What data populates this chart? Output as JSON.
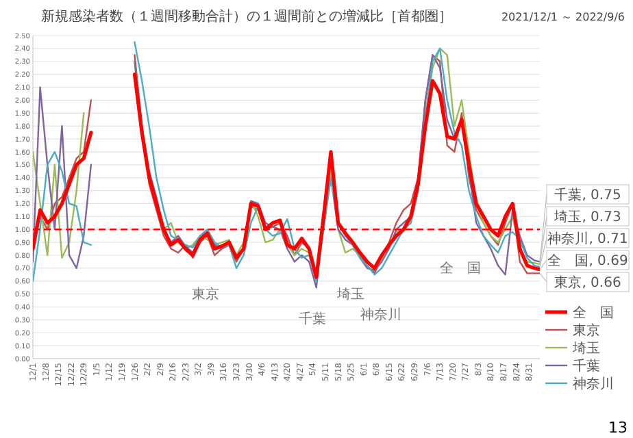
{
  "chart_data": {
    "type": "line",
    "title": "新規感染者数（１週間移動合計）の１週間前との増減比［首都圏］",
    "subtitle": "2021/12/1 ～ 2022/9/6",
    "x": [
      "2021-12-01",
      "2021-12-05",
      "2021-12-09",
      "2021-12-13",
      "2021-12-17",
      "2021-12-21",
      "2021-12-25",
      "2021-12-29",
      "2022-01-02",
      "2022-01-06",
      "2022-01-10",
      "2022-01-14",
      "2022-01-18",
      "2022-01-22",
      "2022-01-26",
      "2022-01-30",
      "2022-02-03",
      "2022-02-07",
      "2022-02-11",
      "2022-02-15",
      "2022-02-19",
      "2022-02-23",
      "2022-02-27",
      "2022-03-03",
      "2022-03-07",
      "2022-03-11",
      "2022-03-15",
      "2022-03-19",
      "2022-03-23",
      "2022-03-27",
      "2022-03-31",
      "2022-04-04",
      "2022-04-08",
      "2022-04-12",
      "2022-04-16",
      "2022-04-20",
      "2022-04-24",
      "2022-04-28",
      "2022-05-02",
      "2022-05-06",
      "2022-05-10",
      "2022-05-14",
      "2022-05-18",
      "2022-05-22",
      "2022-05-26",
      "2022-05-30",
      "2022-06-03",
      "2022-06-07",
      "2022-06-11",
      "2022-06-15",
      "2022-06-19",
      "2022-06-23",
      "2022-06-27",
      "2022-07-01",
      "2022-07-05",
      "2022-07-09",
      "2022-07-13",
      "2022-07-17",
      "2022-07-21",
      "2022-07-25",
      "2022-07-29",
      "2022-08-02",
      "2022-08-06",
      "2022-08-10",
      "2022-08-14",
      "2022-08-18",
      "2022-08-22",
      "2022-08-26",
      "2022-08-30",
      "2022-09-03",
      "2022-09-06"
    ],
    "series": [
      {
        "name": "全　国",
        "color": "#ff0000",
        "values": [
          0.85,
          1.15,
          1.05,
          1.1,
          1.2,
          1.35,
          1.5,
          1.55,
          1.75,
          null,
          null,
          null,
          null,
          null,
          2.2,
          1.75,
          1.4,
          1.2,
          1.0,
          0.88,
          0.92,
          0.85,
          0.8,
          0.92,
          0.97,
          0.85,
          0.87,
          0.9,
          0.78,
          0.85,
          1.2,
          1.18,
          1.0,
          1.05,
          1.07,
          0.88,
          0.85,
          0.93,
          0.85,
          0.63,
          1.1,
          1.6,
          1.05,
          0.97,
          0.9,
          0.82,
          0.75,
          0.7,
          0.8,
          0.88,
          0.95,
          1.0,
          1.1,
          1.35,
          1.8,
          2.15,
          2.05,
          1.72,
          1.7,
          1.85,
          1.5,
          1.2,
          1.1,
          1.0,
          0.95,
          1.1,
          1.2,
          0.85,
          0.72,
          0.7,
          0.69
        ]
      },
      {
        "name": "東京",
        "color": "#c0504d",
        "values": [
          0.95,
          1.1,
          1.0,
          1.2,
          1.25,
          1.4,
          1.55,
          1.6,
          2.0,
          null,
          null,
          null,
          null,
          null,
          2.35,
          1.8,
          1.35,
          1.15,
          0.95,
          0.85,
          0.82,
          0.88,
          0.78,
          0.9,
          0.95,
          0.8,
          0.85,
          0.88,
          0.75,
          0.85,
          1.18,
          1.15,
          1.0,
          1.02,
          1.05,
          0.95,
          0.8,
          0.9,
          0.85,
          0.63,
          1.1,
          1.45,
          1.05,
          0.95,
          0.9,
          0.8,
          0.72,
          0.66,
          0.78,
          0.9,
          1.05,
          1.15,
          1.2,
          1.4,
          2.0,
          2.35,
          2.3,
          1.65,
          1.6,
          1.9,
          1.4,
          1.15,
          1.05,
          0.95,
          0.88,
          1.05,
          1.2,
          0.75,
          0.66,
          0.66,
          0.66
        ]
      },
      {
        "name": "埼玉",
        "color": "#9bbb59",
        "values": [
          1.6,
          1.2,
          0.8,
          1.5,
          0.78,
          0.9,
          1.3,
          1.9,
          null,
          null,
          null,
          null,
          null,
          null,
          2.3,
          1.75,
          1.4,
          1.2,
          1.0,
          1.05,
          0.9,
          0.85,
          0.88,
          0.95,
          0.92,
          0.88,
          0.9,
          0.92,
          0.8,
          0.9,
          1.22,
          1.1,
          0.9,
          0.92,
          1.0,
          0.88,
          0.8,
          0.85,
          0.82,
          0.65,
          1.0,
          1.45,
          1.0,
          0.82,
          0.85,
          0.8,
          0.75,
          0.68,
          0.78,
          0.88,
          0.98,
          1.0,
          1.05,
          1.3,
          1.9,
          2.25,
          2.4,
          2.35,
          1.8,
          2.0,
          1.6,
          1.2,
          1.05,
          0.95,
          0.9,
          1.0,
          1.1,
          0.85,
          0.75,
          0.74,
          0.73
        ]
      },
      {
        "name": "千葉",
        "color": "#8064a2",
        "values": [
          0.75,
          2.1,
          1.5,
          1.0,
          1.8,
          0.8,
          0.7,
          0.95,
          1.5,
          null,
          null,
          null,
          null,
          null,
          2.3,
          1.8,
          1.45,
          1.25,
          1.0,
          0.9,
          0.95,
          0.87,
          0.82,
          0.95,
          0.98,
          0.88,
          0.85,
          0.88,
          0.78,
          0.85,
          1.22,
          1.2,
          1.05,
          1.02,
          1.0,
          0.85,
          0.75,
          0.8,
          0.75,
          0.55,
          1.05,
          1.4,
          1.0,
          0.92,
          0.88,
          0.78,
          0.7,
          0.68,
          0.75,
          0.85,
          1.0,
          1.05,
          1.1,
          1.4,
          2.0,
          2.35,
          2.25,
          1.85,
          1.7,
          1.85,
          1.45,
          1.05,
          0.95,
          0.85,
          0.72,
          0.65,
          1.15,
          0.95,
          0.8,
          0.76,
          0.75
        ]
      },
      {
        "name": "神奈川",
        "color": "#4bacc6",
        "values": [
          0.6,
          1.0,
          1.5,
          1.6,
          1.45,
          1.2,
          1.18,
          0.9,
          0.88,
          null,
          null,
          null,
          null,
          null,
          2.45,
          2.15,
          1.8,
          1.4,
          1.15,
          0.95,
          0.92,
          0.88,
          0.86,
          0.95,
          1.0,
          0.9,
          0.86,
          0.88,
          0.7,
          0.8,
          1.05,
          1.18,
          1.0,
          0.95,
          0.97,
          1.08,
          0.85,
          0.78,
          0.8,
          0.6,
          1.0,
          1.4,
          1.05,
          0.95,
          0.88,
          0.78,
          0.72,
          0.65,
          0.7,
          0.8,
          0.9,
          1.0,
          1.05,
          1.3,
          1.85,
          2.3,
          2.4,
          2.0,
          1.75,
          1.65,
          1.3,
          1.1,
          0.95,
          0.88,
          0.82,
          0.95,
          0.98,
          0.92,
          0.78,
          0.72,
          0.71
        ]
      }
    ],
    "xlim": [
      "2021-12-01",
      "2022-09-06"
    ],
    "xticks": [
      {
        "value": "2021-12-01",
        "label": "12/1"
      },
      {
        "value": "2021-12-08",
        "label": "12/8"
      },
      {
        "value": "2021-12-15",
        "label": "12/15"
      },
      {
        "value": "2021-12-22",
        "label": "12/22"
      },
      {
        "value": "2021-12-29",
        "label": "12/29"
      },
      {
        "value": "2022-01-05",
        "label": "1/5"
      },
      {
        "value": "2022-01-12",
        "label": "1/12"
      },
      {
        "value": "2022-01-19",
        "label": "1/19"
      },
      {
        "value": "2022-01-26",
        "label": "1/26"
      },
      {
        "value": "2022-02-02",
        "label": "2/2"
      },
      {
        "value": "2022-02-09",
        "label": "2/9"
      },
      {
        "value": "2022-02-16",
        "label": "2/16"
      },
      {
        "value": "2022-02-23",
        "label": "2/23"
      },
      {
        "value": "2022-03-02",
        "label": "3/2"
      },
      {
        "value": "2022-03-09",
        "label": "3/9"
      },
      {
        "value": "2022-03-16",
        "label": "3/16"
      },
      {
        "value": "2022-03-23",
        "label": "3/23"
      },
      {
        "value": "2022-03-30",
        "label": "3/30"
      },
      {
        "value": "2022-04-06",
        "label": "4/6"
      },
      {
        "value": "2022-04-13",
        "label": "4/13"
      },
      {
        "value": "2022-04-20",
        "label": "4/20"
      },
      {
        "value": "2022-04-27",
        "label": "4/27"
      },
      {
        "value": "2022-05-04",
        "label": "5/4"
      },
      {
        "value": "2022-05-11",
        "label": "5/11"
      },
      {
        "value": "2022-05-18",
        "label": "5/18"
      },
      {
        "value": "2022-05-25",
        "label": "5/25"
      },
      {
        "value": "2022-06-01",
        "label": "6/1"
      },
      {
        "value": "2022-06-08",
        "label": "6/8"
      },
      {
        "value": "2022-06-15",
        "label": "6/15"
      },
      {
        "value": "2022-06-22",
        "label": "6/22"
      },
      {
        "value": "2022-06-29",
        "label": "6/29"
      },
      {
        "value": "2022-07-06",
        "label": "7/6"
      },
      {
        "value": "2022-07-13",
        "label": "7/13"
      },
      {
        "value": "2022-07-20",
        "label": "7/20"
      },
      {
        "value": "2022-07-27",
        "label": "7/27"
      },
      {
        "value": "2022-08-03",
        "label": "8/3"
      },
      {
        "value": "2022-08-10",
        "label": "8/10"
      },
      {
        "value": "2022-08-17",
        "label": "8/17"
      },
      {
        "value": "2022-08-24",
        "label": "8/24"
      },
      {
        "value": "2022-08-31",
        "label": "8/31"
      }
    ],
    "ylim": [
      0,
      2.5
    ],
    "yticks": [
      {
        "value": 0,
        "label": "0.00"
      },
      {
        "value": 0.1,
        "label": "0.10"
      },
      {
        "value": 0.2,
        "label": "0.20"
      },
      {
        "value": 0.3,
        "label": "0.30"
      },
      {
        "value": 0.4,
        "label": "0.40"
      },
      {
        "value": 0.5,
        "label": "0.50"
      },
      {
        "value": 0.6,
        "label": "0.60"
      },
      {
        "value": 0.7,
        "label": "0.70"
      },
      {
        "value": 0.8,
        "label": "0.80"
      },
      {
        "value": 0.9,
        "label": "0.90"
      },
      {
        "value": 1,
        "label": "1.00"
      },
      {
        "value": 1.1,
        "label": "1.10"
      },
      {
        "value": 1.2,
        "label": "1.20"
      },
      {
        "value": 1.3,
        "label": "1.30"
      },
      {
        "value": 1.4,
        "label": "1.40"
      },
      {
        "value": 1.5,
        "label": "1.50"
      },
      {
        "value": 1.6,
        "label": "1.60"
      },
      {
        "value": 1.7,
        "label": "1.70"
      },
      {
        "value": 1.8,
        "label": "1.80"
      },
      {
        "value": 1.9,
        "label": "1.90"
      },
      {
        "value": 2,
        "label": "2.00"
      },
      {
        "value": 2.1,
        "label": "2.10"
      },
      {
        "value": 2.2,
        "label": "2.20"
      },
      {
        "value": 2.3,
        "label": "2.30"
      },
      {
        "value": 2.4,
        "label": "2.40"
      },
      {
        "value": 2.5,
        "label": "2.50"
      }
    ],
    "grid": "y",
    "legend": "bottom right",
    "marker": "none",
    "line_style": "solid",
    "ref_lines": [
      {
        "axis": "y",
        "value": 1,
        "color": "#ff0000",
        "line_style": "dashed"
      }
    ],
    "annotations": [
      "東京",
      "千葉",
      "埼玉",
      "神奈川",
      "全　国",
      {
        "text": "千葉, 0.75",
        "x": "2022-09-06",
        "y": 0.75
      },
      {
        "text": "埼玉, 0.73",
        "x": "2022-09-06",
        "y": 0.73
      },
      {
        "text": "神奈川, 0.71",
        "x": "2022-09-06",
        "y": 0.71
      },
      {
        "text": "全　国, 0.69",
        "x": "2022-09-06",
        "y": 0.69
      },
      {
        "text": "東京, 0.66",
        "x": "2022-09-06",
        "y": 0.66
      },
      "13"
    ]
  }
}
